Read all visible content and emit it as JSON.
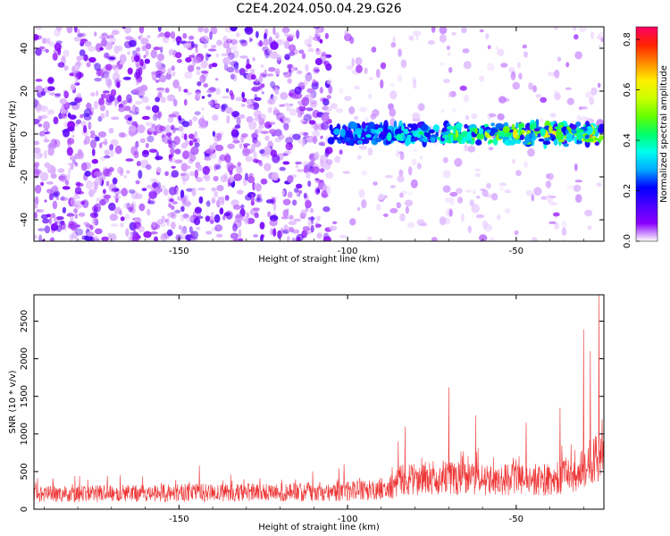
{
  "chart_data": [
    {
      "type": "heatmap",
      "title": "C2E4.2024.050.04.29.G26",
      "xlabel": "Height of straight line (km)",
      "ylabel": "Frequency (Hz)",
      "xlim": [
        -193,
        -24
      ],
      "ylim": [
        -50,
        50
      ],
      "xticks": [
        -150,
        -100,
        -50
      ],
      "yticks": [
        -40,
        -20,
        0,
        20,
        40
      ],
      "colorbar": {
        "label": "Normalized spectral amplitude",
        "range": [
          0,
          0.85
        ],
        "ticks": [
          0.0,
          0.2,
          0.4,
          0.6,
          0.8
        ],
        "colormap": [
          "#ffffff",
          "#8a00ff",
          "#4b00ff",
          "#0000ff",
          "#00aaff",
          "#00ffee",
          "#00ff66",
          "#66ff00",
          "#ccff00",
          "#ffee00",
          "#ff8800",
          "#ff2200",
          "#ff0066"
        ]
      },
      "regions": [
        {
          "name": "broadband noise",
          "x": [
            -193,
            -105
          ],
          "y": [
            -50,
            50
          ],
          "amplitude": [
            0.02,
            0.15
          ]
        },
        {
          "name": "sparse noise",
          "x": [
            -105,
            -24
          ],
          "y": [
            -50,
            50
          ],
          "amplitude": [
            0.01,
            0.06
          ]
        },
        {
          "name": "carrier line",
          "x": [
            -105,
            -24
          ],
          "y_center": 0,
          "y_halfwidth": [
            3,
            6
          ],
          "amplitude": [
            0.15,
            0.8
          ]
        }
      ],
      "grid": false
    },
    {
      "type": "line",
      "xlabel": "Height of straight line (km)",
      "ylabel": "SNR (10 * v/v)",
      "xlim": [
        -193,
        -24
      ],
      "ylim": [
        0,
        2850
      ],
      "xticks": [
        -150,
        -100,
        -50
      ],
      "yticks": [
        0,
        500,
        1000,
        1500,
        2000,
        2500
      ],
      "series_color": "#ee3333",
      "baseline": [
        {
          "x": -193,
          "y": 200
        },
        {
          "x": -150,
          "y": 215
        },
        {
          "x": -110,
          "y": 230
        },
        {
          "x": -95,
          "y": 250
        },
        {
          "x": -90,
          "y": 270
        },
        {
          "x": -86,
          "y": 310
        },
        {
          "x": -84,
          "y": 400
        },
        {
          "x": -70,
          "y": 420
        },
        {
          "x": -60,
          "y": 380
        },
        {
          "x": -40,
          "y": 400
        },
        {
          "x": -33,
          "y": 450
        },
        {
          "x": -28,
          "y": 600
        },
        {
          "x": -24,
          "y": 800
        }
      ],
      "peaks": [
        {
          "x": -193,
          "y": 490
        },
        {
          "x": -144,
          "y": 580
        },
        {
          "x": -101,
          "y": 600
        },
        {
          "x": -85,
          "y": 900
        },
        {
          "x": -83,
          "y": 1100
        },
        {
          "x": -70,
          "y": 1620
        },
        {
          "x": -62,
          "y": 1250
        },
        {
          "x": -47,
          "y": 1150
        },
        {
          "x": -37,
          "y": 1350
        },
        {
          "x": -30,
          "y": 2390
        },
        {
          "x": -28,
          "y": 2100
        },
        {
          "x": -25.5,
          "y": 2850
        }
      ],
      "grid": false
    }
  ]
}
